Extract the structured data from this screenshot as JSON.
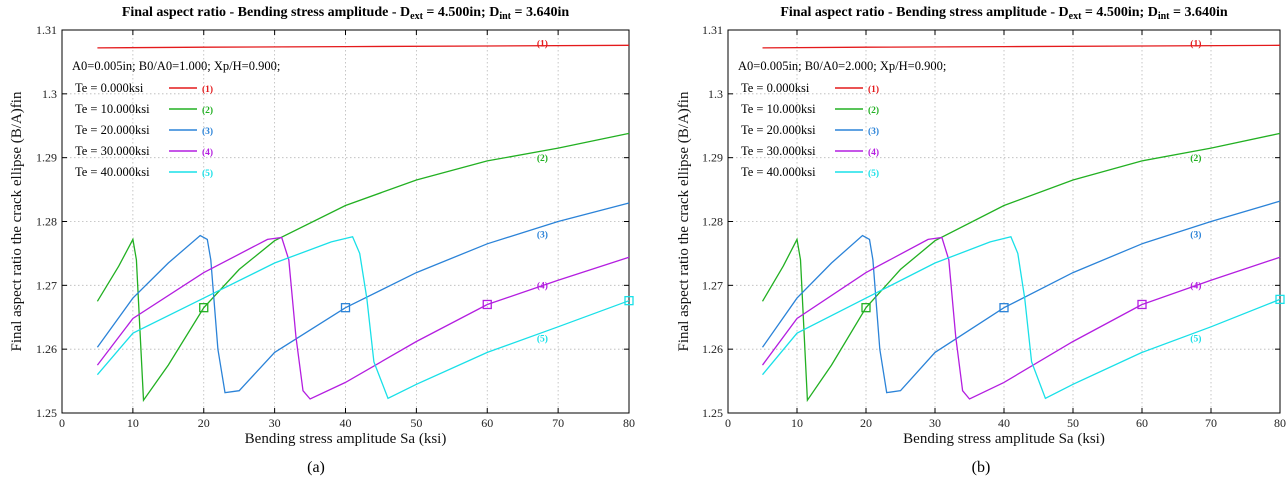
{
  "captions": [
    "(a)",
    "(b)"
  ],
  "colors": {
    "1": "#e41a1c",
    "2": "#22b022",
    "3": "#2b83d8",
    "4": "#b41ee0",
    "5": "#19e0e8"
  },
  "chart_data": [
    {
      "type": "line",
      "title_main": "Final aspect ratio - Bending stress amplitude - D",
      "title_sub1": "ext",
      "title_mid": " = 4.500in; D",
      "title_sub2": "int",
      "title_end": " = 3.640in",
      "xlabel": "Bending stress amplitude Sa (ksi)",
      "ylabel": "Final aspect ratio the crack ellipse (B/A)fin",
      "xlim": [
        0,
        80
      ],
      "ylim": [
        1.25,
        1.31
      ],
      "x_ticks": [
        0,
        10,
        20,
        30,
        40,
        50,
        60,
        70,
        80
      ],
      "x_tick_labels": [
        "0",
        "10",
        "20",
        "30",
        "40",
        "50",
        "60",
        "70",
        "80"
      ],
      "y_ticks": [
        1.25,
        1.26,
        1.27,
        1.28,
        1.29,
        1.3,
        1.31
      ],
      "y_tick_labels": [
        "1.25",
        "1.26",
        "1.27",
        "1.28",
        "1.29",
        "1.3",
        "1.31"
      ],
      "grid": true,
      "params": "A0=0.005in; B0/A0=1.000; Xp/H=0.900;",
      "series": [
        {
          "name": "Te =  0.000ksi",
          "tag": "(1)",
          "tag_x": 67,
          "tag_y": 1.3074,
          "marker": null,
          "x": [
            5,
            20,
            40,
            60,
            80
          ],
          "y": [
            1.3072,
            1.3073,
            1.3074,
            1.3075,
            1.3076
          ]
        },
        {
          "name": "Te = 10.000ksi",
          "tag": "(2)",
          "tag_x": 67,
          "tag_y": 1.2895,
          "marker": [
            20,
            1.2665
          ],
          "x": [
            5,
            8,
            10,
            10.5,
            11.5,
            15,
            20,
            25,
            30,
            40,
            50,
            60,
            70,
            80
          ],
          "y": [
            1.2675,
            1.273,
            1.2772,
            1.274,
            1.252,
            1.2575,
            1.2665,
            1.2725,
            1.277,
            1.2825,
            1.2865,
            1.2895,
            1.2915,
            1.2938
          ]
        },
        {
          "name": "Te = 20.000ksi",
          "tag": "(3)",
          "tag_x": 67,
          "tag_y": 1.2775,
          "marker": [
            40,
            1.2665
          ],
          "x": [
            5,
            10,
            15,
            19.5,
            20.5,
            21,
            22,
            23,
            25,
            30,
            40,
            50,
            60,
            70,
            80
          ],
          "y": [
            1.2603,
            1.268,
            1.2735,
            1.2778,
            1.2772,
            1.274,
            1.26,
            1.2532,
            1.2535,
            1.2595,
            1.2665,
            1.272,
            1.2765,
            1.28,
            1.2829
          ]
        },
        {
          "name": "Te = 30.000ksi",
          "tag": "(4)",
          "tag_x": 67,
          "tag_y": 1.2695,
          "marker": [
            60,
            1.267
          ],
          "x": [
            5,
            10,
            20,
            29,
            31,
            32,
            33,
            34,
            35,
            40,
            50,
            60,
            70,
            80
          ],
          "y": [
            1.2575,
            1.2648,
            1.272,
            1.2772,
            1.2775,
            1.274,
            1.262,
            1.2535,
            1.2522,
            1.2548,
            1.2612,
            1.267,
            1.2708,
            1.2744
          ]
        },
        {
          "name": "Te = 40.000ksi",
          "tag": "(5)",
          "tag_x": 67,
          "tag_y": 1.2612,
          "marker": [
            80,
            1.2676
          ],
          "x": [
            5,
            10,
            20,
            30,
            38,
            41,
            42,
            43,
            44,
            46,
            50,
            60,
            70,
            80
          ],
          "y": [
            1.256,
            1.2625,
            1.268,
            1.2735,
            1.2768,
            1.2776,
            1.275,
            1.268,
            1.258,
            1.2523,
            1.2545,
            1.2595,
            1.2635,
            1.2676
          ]
        }
      ]
    },
    {
      "type": "line",
      "title_main": "Final aspect ratio - Bending stress amplitude - D",
      "title_sub1": "ext",
      "title_mid": " = 4.500in; D",
      "title_sub2": "int",
      "title_end": " = 3.640in",
      "xlabel": "Bending stress amplitude Sa (ksi)",
      "ylabel": "Final aspect ratio the crack ellipse (B/A)fin",
      "xlim": [
        0,
        80
      ],
      "ylim": [
        1.25,
        1.31
      ],
      "x_ticks": [
        0,
        10,
        20,
        30,
        40,
        50,
        60,
        70,
        80
      ],
      "x_tick_labels": [
        "0",
        "10",
        "20",
        "30",
        "40",
        "50",
        "60",
        "70",
        "80"
      ],
      "y_ticks": [
        1.25,
        1.26,
        1.27,
        1.28,
        1.29,
        1.3,
        1.31
      ],
      "y_tick_labels": [
        "1.25",
        "1.26",
        "1.27",
        "1.28",
        "1.29",
        "1.3",
        "1.31"
      ],
      "grid": true,
      "params": "A0=0.005in; B0/A0=2.000; Xp/H=0.900;",
      "series": [
        {
          "name": "Te =  0.000ksi",
          "tag": "(1)",
          "tag_x": 67,
          "tag_y": 1.3074,
          "marker": null,
          "x": [
            5,
            20,
            40,
            60,
            80
          ],
          "y": [
            1.3072,
            1.3073,
            1.3074,
            1.3075,
            1.3076
          ]
        },
        {
          "name": "Te = 10.000ksi",
          "tag": "(2)",
          "tag_x": 67,
          "tag_y": 1.2895,
          "marker": [
            20,
            1.2665
          ],
          "x": [
            5,
            8,
            10,
            10.5,
            11.5,
            15,
            20,
            25,
            30,
            40,
            50,
            60,
            70,
            80
          ],
          "y": [
            1.2675,
            1.273,
            1.2772,
            1.274,
            1.252,
            1.2575,
            1.2665,
            1.2725,
            1.277,
            1.2825,
            1.2865,
            1.2895,
            1.2915,
            1.2938
          ]
        },
        {
          "name": "Te = 20.000ksi",
          "tag": "(3)",
          "tag_x": 67,
          "tag_y": 1.2775,
          "marker": [
            40,
            1.2665
          ],
          "x": [
            5,
            10,
            15,
            19.5,
            20.5,
            21,
            22,
            23,
            25,
            30,
            40,
            50,
            60,
            70,
            80
          ],
          "y": [
            1.2603,
            1.268,
            1.2735,
            1.2778,
            1.2772,
            1.274,
            1.26,
            1.2532,
            1.2535,
            1.2595,
            1.2665,
            1.272,
            1.2765,
            1.28,
            1.2832
          ]
        },
        {
          "name": "Te = 30.000ksi",
          "tag": "(4)",
          "tag_x": 67,
          "tag_y": 1.2695,
          "marker": [
            60,
            1.267
          ],
          "x": [
            5,
            10,
            20,
            29,
            31,
            32,
            33,
            34,
            35,
            40,
            50,
            60,
            70,
            80
          ],
          "y": [
            1.2575,
            1.2648,
            1.272,
            1.2772,
            1.2775,
            1.274,
            1.262,
            1.2535,
            1.2522,
            1.2548,
            1.2612,
            1.267,
            1.2708,
            1.2744
          ]
        },
        {
          "name": "Te = 40.000ksi",
          "tag": "(5)",
          "tag_x": 67,
          "tag_y": 1.2612,
          "marker": [
            80,
            1.2678
          ],
          "x": [
            5,
            10,
            20,
            30,
            38,
            41,
            42,
            43,
            44,
            46,
            50,
            60,
            70,
            80
          ],
          "y": [
            1.256,
            1.2625,
            1.268,
            1.2735,
            1.2768,
            1.2776,
            1.275,
            1.268,
            1.258,
            1.2523,
            1.2545,
            1.2595,
            1.2635,
            1.2678
          ]
        }
      ]
    }
  ]
}
